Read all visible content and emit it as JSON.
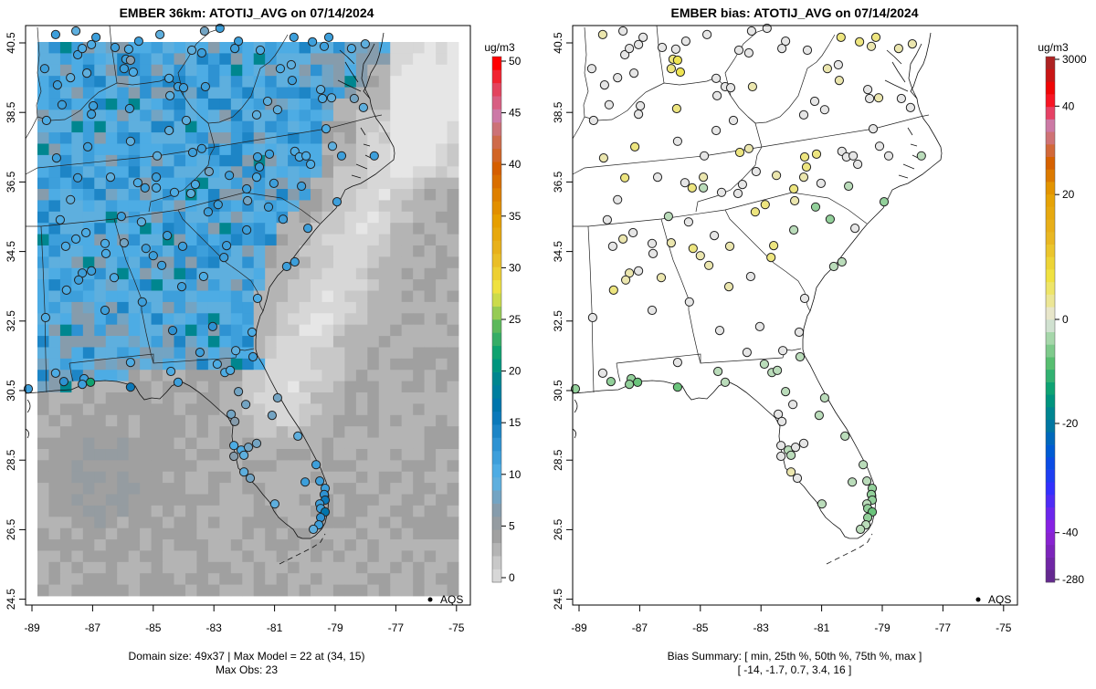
{
  "left_panel": {
    "title": "EMBER 36km: ATOTIJ_AVG on 07/14/2024",
    "colorbar_unit": "ug/m3",
    "colorbar_ticks": [
      "0",
      "5",
      "10",
      "15",
      "20",
      "25",
      "30",
      "35",
      "40",
      "45",
      "50"
    ],
    "legend_label": "AQS",
    "footer_line1": "Domain size: 49x37 | Max Model = 22 at (34, 15)",
    "footer_line2": "Max Obs: 23"
  },
  "right_panel": {
    "title": "EMBER bias: ATOTIJ_AVG on 07/14/2024",
    "colorbar_unit": "ug/m3",
    "colorbar_ticks": [
      "3000",
      "40",
      "20",
      "0",
      "-20",
      "-40",
      "-280"
    ],
    "legend_label": "AQS",
    "footer_line1": "Bias Summary: [ min, 25th %, 50th %, 75th %, max ]",
    "footer_line2": "[ -14,   -1.7,   0.7,   3.4,   16 ]"
  },
  "chart_data": {
    "type": "scatter",
    "description_variable": "ATOTIJ_AVG",
    "date": "07/14/2024",
    "x_ticks": [
      "-89",
      "-87",
      "-85",
      "-83",
      "-81",
      "-79",
      "-77",
      "-75"
    ],
    "y_ticks": [
      "40.5",
      "38.5",
      "36.5",
      "34.5",
      "32.5",
      "30.5",
      "28.5",
      "26.5",
      "24.5"
    ],
    "xlim": [
      -89.2,
      -74.6
    ],
    "ylim": [
      24.0,
      41.0
    ],
    "grid_dims": [
      49,
      37
    ],
    "max_model": 22,
    "max_obs": 23,
    "obs_range": [
      0,
      50
    ],
    "bias_summary": {
      "min": -14,
      "p25": -1.7,
      "p50": 0.7,
      "p75": 3.4,
      "max": 16
    },
    "station_fields": [
      "lon",
      "lat",
      "obs",
      "bias"
    ],
    "stations": [
      [
        -88.22,
        40.74,
        12,
        1
      ],
      [
        -87.55,
        40.84,
        10,
        0
      ],
      [
        -86.89,
        40.66,
        12,
        0
      ],
      [
        -87.04,
        40.45,
        11,
        0
      ],
      [
        -87.49,
        40.16,
        12,
        0
      ],
      [
        -87.34,
        40.34,
        11,
        0
      ],
      [
        -86.26,
        40.37,
        12,
        0
      ],
      [
        -85.81,
        40.32,
        11,
        0
      ],
      [
        -85.48,
        40.55,
        12,
        0
      ],
      [
        -84.78,
        40.74,
        10,
        0
      ],
      [
        -83.31,
        40.84,
        9,
        0
      ],
      [
        -82.8,
        40.92,
        13,
        0
      ],
      [
        -82.19,
        40.55,
        12,
        0
      ],
      [
        -82.31,
        40.34,
        13,
        0
      ],
      [
        -81.47,
        40.29,
        11,
        0
      ],
      [
        -80.36,
        40.66,
        12,
        4
      ],
      [
        -79.75,
        40.53,
        13,
        4
      ],
      [
        -79.36,
        40.4,
        12,
        2
      ],
      [
        -79.21,
        40.66,
        12,
        4
      ],
      [
        -78.46,
        40.34,
        11,
        1
      ],
      [
        -78.01,
        40.47,
        10,
        2
      ],
      [
        -88.58,
        39.76,
        12,
        -1
      ],
      [
        -87.73,
        39.5,
        10,
        0
      ],
      [
        -87.19,
        39.63,
        10,
        0
      ],
      [
        -88.16,
        39.29,
        12,
        0
      ],
      [
        -85.9,
        40.03,
        13,
        4
      ],
      [
        -85.75,
        40.0,
        8,
        6
      ],
      [
        -85.96,
        39.76,
        12,
        4
      ],
      [
        -85.66,
        39.66,
        11,
        5
      ],
      [
        -84.48,
        39.48,
        11,
        0
      ],
      [
        -84.18,
        39.24,
        12,
        0
      ],
      [
        -84.0,
        39.21,
        12,
        0
      ],
      [
        -83.28,
        39.24,
        12,
        1
      ],
      [
        -83.4,
        40.21,
        12,
        0
      ],
      [
        -83.73,
        40.29,
        10,
        0
      ],
      [
        -80.81,
        39.76,
        11,
        1
      ],
      [
        -80.45,
        39.87,
        10,
        0
      ],
      [
        -80.42,
        39.42,
        12,
        1
      ],
      [
        -79.48,
        39.16,
        10,
        0
      ],
      [
        -79.42,
        38.9,
        11,
        0
      ],
      [
        -79.12,
        38.92,
        10,
        1
      ],
      [
        -78.37,
        38.9,
        9,
        0
      ],
      [
        -78.07,
        38.64,
        10,
        0
      ],
      [
        -88.01,
        38.72,
        12,
        -1
      ],
      [
        -86.98,
        38.69,
        13,
        0
      ],
      [
        -87.04,
        38.45,
        12,
        0
      ],
      [
        -85.78,
        38.61,
        12,
        4
      ],
      [
        -84.45,
        38.98,
        10,
        0
      ],
      [
        -88.52,
        38.27,
        11,
        -1
      ],
      [
        -83.91,
        38.27,
        10,
        0
      ],
      [
        -84.48,
        37.98,
        10,
        0
      ],
      [
        -85.75,
        37.67,
        10,
        0
      ],
      [
        -87.16,
        37.51,
        12,
        3
      ],
      [
        -88.19,
        37.19,
        13,
        1
      ],
      [
        -84.87,
        37.25,
        10,
        0
      ],
      [
        -83.7,
        37.35,
        12,
        3
      ],
      [
        -83.4,
        37.46,
        12,
        1
      ],
      [
        -81.59,
        38.43,
        10,
        0
      ],
      [
        -81.23,
        38.82,
        10,
        0
      ],
      [
        -80.9,
        38.58,
        10,
        0
      ],
      [
        -79.3,
        38.03,
        11,
        -1
      ],
      [
        -79.09,
        37.53,
        10,
        0
      ],
      [
        -78.79,
        37.25,
        12,
        -1
      ],
      [
        -80.33,
        37.38,
        11,
        0
      ],
      [
        -80.18,
        37.22,
        11,
        0
      ],
      [
        -79.96,
        37.25,
        11,
        0
      ],
      [
        -79.81,
        37.01,
        11,
        -1
      ],
      [
        -81.56,
        37.22,
        13,
        3
      ],
      [
        -81.17,
        37.3,
        12,
        4
      ],
      [
        -81.5,
        36.93,
        12,
        3
      ],
      [
        -81.59,
        36.64,
        11,
        2
      ],
      [
        -81.02,
        36.46,
        12,
        0
      ],
      [
        -80.11,
        36.38,
        13,
        -3
      ],
      [
        -77.71,
        37.25,
        12,
        -3
      ],
      [
        -87.49,
        36.62,
        13,
        4
      ],
      [
        -86.41,
        36.64,
        10,
        0
      ],
      [
        -84.9,
        36.64,
        12,
        1
      ],
      [
        -85.51,
        36.48,
        11,
        0
      ],
      [
        -85.27,
        36.33,
        12,
        3
      ],
      [
        -84.9,
        36.33,
        11,
        -2
      ],
      [
        -83.16,
        36.8,
        9,
        0
      ],
      [
        -82.49,
        36.69,
        12,
        2
      ],
      [
        -83.61,
        36.43,
        11,
        0
      ],
      [
        -84.3,
        36.2,
        11,
        0
      ],
      [
        -83.76,
        36.17,
        10,
        0
      ],
      [
        -81.92,
        36.3,
        13,
        4
      ],
      [
        -81.89,
        35.96,
        9,
        1
      ],
      [
        -87.73,
        35.99,
        10,
        0
      ],
      [
        -86.05,
        35.51,
        13,
        -2
      ],
      [
        -88.07,
        35.41,
        11,
        0
      ],
      [
        -85.39,
        35.35,
        10,
        0
      ],
      [
        -83.19,
        35.64,
        12,
        4
      ],
      [
        -82.86,
        35.85,
        12,
        3
      ],
      [
        -81.2,
        35.78,
        12,
        -4
      ],
      [
        -80.72,
        35.43,
        12,
        -4
      ],
      [
        -79.9,
        35.17,
        12,
        -1
      ],
      [
        -78.94,
        35.93,
        13,
        -4
      ],
      [
        -81.92,
        35.12,
        13,
        -3
      ],
      [
        -87.22,
        35.04,
        11,
        0
      ],
      [
        -87.55,
        34.86,
        11,
        1
      ],
      [
        -87.89,
        34.65,
        11,
        0
      ],
      [
        -86.59,
        34.73,
        11,
        0
      ],
      [
        -86.56,
        34.44,
        11,
        0
      ],
      [
        -85.96,
        34.75,
        9,
        2
      ],
      [
        -85.24,
        34.59,
        13,
        3
      ],
      [
        -85.0,
        34.38,
        12,
        1
      ],
      [
        -84.72,
        34.1,
        12,
        2
      ],
      [
        -84.54,
        34.96,
        13,
        0
      ],
      [
        -84.03,
        34.65,
        13,
        2
      ],
      [
        -82.58,
        34.67,
        13,
        4
      ],
      [
        -82.67,
        34.33,
        13,
        3
      ],
      [
        -83.34,
        33.78,
        11,
        0
      ],
      [
        -84.06,
        33.49,
        13,
        1
      ],
      [
        -87.34,
        33.88,
        12,
        1
      ],
      [
        -87.04,
        33.94,
        12,
        0
      ],
      [
        -87.46,
        33.68,
        12,
        1
      ],
      [
        -86.29,
        33.75,
        11,
        2
      ],
      [
        -87.86,
        33.39,
        11,
        3
      ],
      [
        -85.36,
        33.05,
        13,
        -1
      ],
      [
        -86.59,
        32.81,
        12,
        -1
      ],
      [
        -80.6,
        34.07,
        12,
        -3
      ],
      [
        -80.33,
        34.2,
        12,
        -2
      ],
      [
        -81.56,
        33.15,
        11,
        0
      ],
      [
        -88.55,
        32.6,
        11,
        -1
      ],
      [
        -84.36,
        32.23,
        14,
        -1
      ],
      [
        -83.04,
        32.34,
        14,
        -1
      ],
      [
        -81.74,
        32.18,
        11,
        -1
      ],
      [
        -83.46,
        31.6,
        13,
        -1
      ],
      [
        -82.28,
        31.65,
        10,
        0
      ],
      [
        -85.75,
        31.31,
        11,
        -1
      ],
      [
        -81.71,
        31.47,
        12,
        -3
      ],
      [
        -82.89,
        31.26,
        11,
        -2
      ],
      [
        -82.64,
        31.02,
        11,
        -2
      ],
      [
        -82.46,
        31.08,
        11,
        -2
      ],
      [
        -84.42,
        31.05,
        11,
        -2
      ],
      [
        -84.18,
        30.74,
        12,
        -3
      ],
      [
        -88.22,
        31.0,
        11,
        -1
      ],
      [
        -87.95,
        30.76,
        14,
        -4
      ],
      [
        -87.28,
        30.84,
        12,
        -4
      ],
      [
        -87.34,
        30.68,
        12,
        -4
      ],
      [
        -87.07,
        30.74,
        23,
        -7
      ],
      [
        -85.75,
        30.6,
        16,
        -6
      ],
      [
        -89.12,
        30.55,
        12,
        -4
      ],
      [
        -82.19,
        30.47,
        9,
        -2
      ],
      [
        -81.95,
        30.1,
        9,
        -1
      ],
      [
        -80.9,
        30.29,
        9,
        -3
      ],
      [
        -81.08,
        29.79,
        9,
        -3
      ],
      [
        -82.43,
        29.82,
        9,
        -1
      ],
      [
        -82.31,
        29.61,
        8,
        0
      ],
      [
        -82.34,
        28.92,
        11,
        -1
      ],
      [
        -82.1,
        28.79,
        11,
        -2
      ],
      [
        -81.86,
        28.87,
        9,
        0
      ],
      [
        -81.59,
        28.98,
        9,
        0
      ],
      [
        -82.34,
        28.61,
        8,
        0
      ],
      [
        -82.01,
        28.64,
        10,
        -2
      ],
      [
        -82.01,
        28.16,
        10,
        1
      ],
      [
        -81.8,
        27.98,
        9,
        0
      ],
      [
        -80.23,
        29.19,
        10,
        -2
      ],
      [
        -79.63,
        28.37,
        12,
        -3
      ],
      [
        -79.51,
        27.9,
        12,
        -3
      ],
      [
        -79.99,
        27.87,
        13,
        -3
      ],
      [
        -79.33,
        27.69,
        13,
        -4
      ],
      [
        -79.36,
        27.51,
        14,
        -4
      ],
      [
        -79.33,
        27.35,
        16,
        -5
      ],
      [
        -79.51,
        27.24,
        12,
        -3
      ],
      [
        -79.48,
        27.11,
        13,
        -4
      ],
      [
        -79.33,
        27.01,
        17,
        -6
      ],
      [
        -79.48,
        26.85,
        14,
        -5
      ],
      [
        -79.54,
        26.64,
        12,
        -3
      ],
      [
        -79.72,
        26.51,
        10,
        -2
      ],
      [
        -80.99,
        27.24,
        10,
        -2
      ]
    ]
  },
  "colors": {
    "background": "#ffffff",
    "axis": "#000000",
    "station_outline": "#222222"
  }
}
